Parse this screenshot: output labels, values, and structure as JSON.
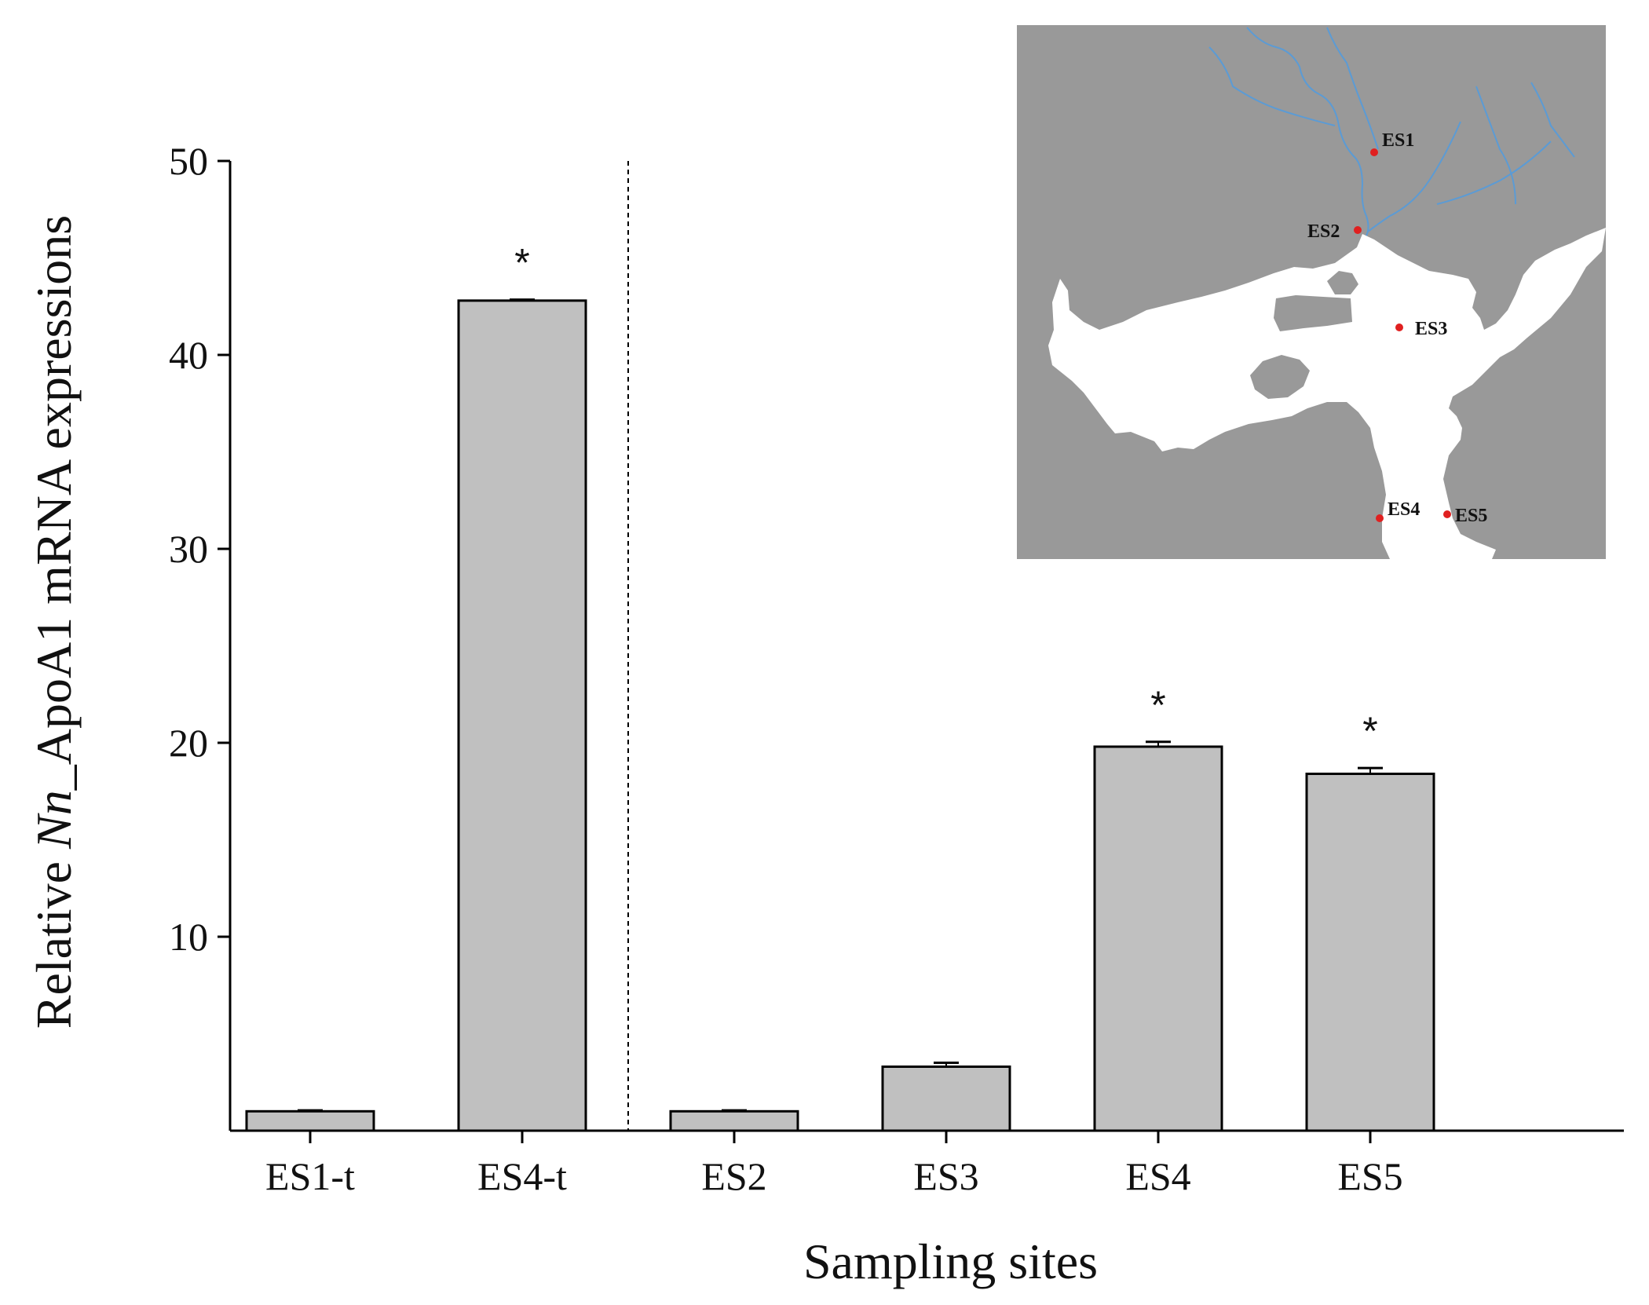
{
  "chart_data": {
    "type": "bar",
    "categories": [
      "ES1-t",
      "ES4-t",
      "ES2",
      "ES3",
      "ES4",
      "ES5"
    ],
    "values": [
      1.0,
      42.8,
      1.0,
      3.3,
      19.8,
      18.4
    ],
    "errors": [
      0.05,
      0.05,
      0.05,
      0.2,
      0.25,
      0.3
    ],
    "significant": [
      false,
      true,
      false,
      false,
      true,
      true
    ],
    "significance_marker": "*",
    "xlabel": "Sampling sites",
    "ylabel_parts": [
      "Relative ",
      "Nn",
      "_ApoA1 mRNA expressions"
    ],
    "ylim": [
      0,
      50
    ],
    "yticks": [
      10,
      20,
      30,
      40,
      50
    ],
    "separator_after_index": 1,
    "grid": false,
    "bar_color": "#c0c0c0",
    "bar_edge_color": "#000000"
  },
  "inset_map": {
    "land_color": "#999999",
    "water_color": "#ffffff",
    "river_color": "#5b9bd5",
    "site_color": "#e02020",
    "sites": [
      "ES1",
      "ES2",
      "ES3",
      "ES4",
      "ES5"
    ]
  }
}
